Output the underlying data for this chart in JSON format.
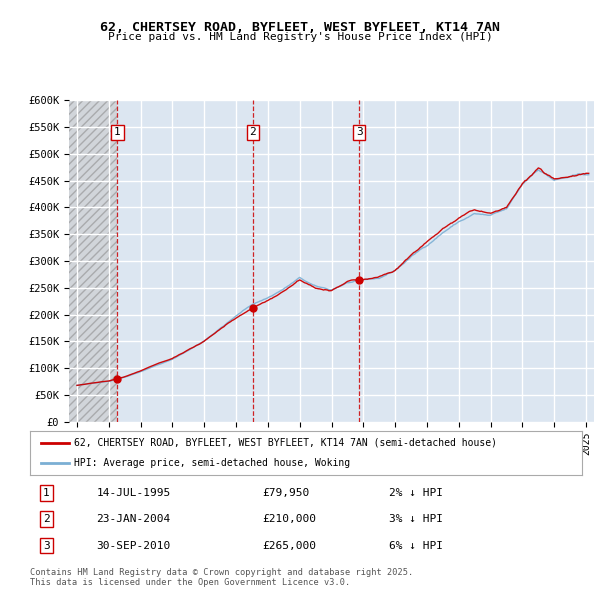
{
  "title": "62, CHERTSEY ROAD, BYFLEET, WEST BYFLEET, KT14 7AN",
  "subtitle": "Price paid vs. HM Land Registry's House Price Index (HPI)",
  "ylim": [
    0,
    600000
  ],
  "yticks": [
    0,
    50000,
    100000,
    150000,
    200000,
    250000,
    300000,
    350000,
    400000,
    450000,
    500000,
    550000,
    600000
  ],
  "ytick_labels": [
    "£0",
    "£50K",
    "£100K",
    "£150K",
    "£200K",
    "£250K",
    "£300K",
    "£350K",
    "£400K",
    "£450K",
    "£500K",
    "£550K",
    "£600K"
  ],
  "plot_bg_color": "#dce6f1",
  "grid_color": "#ffffff",
  "sale_color": "#cc0000",
  "hpi_color": "#7bafd4",
  "sale_dates": [
    1995.54,
    2004.06,
    2010.75
  ],
  "sale_prices": [
    79950,
    210000,
    265000
  ],
  "sale_labels": [
    "1",
    "2",
    "3"
  ],
  "vline_color": "#cc0000",
  "legend_sale_label": "62, CHERTSEY ROAD, BYFLEET, WEST BYFLEET, KT14 7AN (semi-detached house)",
  "legend_hpi_label": "HPI: Average price, semi-detached house, Woking",
  "transaction_rows": [
    {
      "num": "1",
      "date": "14-JUL-1995",
      "price": "£79,950",
      "pct": "2% ↓ HPI"
    },
    {
      "num": "2",
      "date": "23-JAN-2004",
      "price": "£210,000",
      "pct": "3% ↓ HPI"
    },
    {
      "num": "3",
      "date": "30-SEP-2010",
      "price": "£265,000",
      "pct": "6% ↓ HPI"
    }
  ],
  "footnote": "Contains HM Land Registry data © Crown copyright and database right 2025.\nThis data is licensed under the Open Government Licence v3.0.",
  "hpi_base_yearly": {
    "1993.0": 68000,
    "1994.0": 72000,
    "1995.0": 76000,
    "1996.0": 84000,
    "1997.0": 95000,
    "1998.0": 107000,
    "1999.0": 118000,
    "2000.0": 135000,
    "2001.0": 153000,
    "2002.0": 177000,
    "2003.0": 200000,
    "2004.0": 222000,
    "2005.0": 235000,
    "2006.0": 252000,
    "2007.0": 272000,
    "2008.0": 255000,
    "2009.0": 248000,
    "2010.0": 262000,
    "2011.0": 265000,
    "2012.0": 268000,
    "2013.0": 283000,
    "2014.0": 308000,
    "2015.0": 330000,
    "2016.0": 355000,
    "2017.0": 375000,
    "2018.0": 390000,
    "2019.0": 385000,
    "2020.0": 395000,
    "2021.0": 440000,
    "2022.0": 470000,
    "2023.0": 450000,
    "2024.0": 455000,
    "2025.0": 458000
  },
  "sale_hpi_at_date": [
    81600,
    216500,
    281200
  ],
  "xlim_left": 1992.5,
  "xlim_right": 2025.5,
  "xtick_years": [
    1993,
    1995,
    1997,
    1999,
    2001,
    2003,
    2005,
    2007,
    2009,
    2011,
    2013,
    2015,
    2017,
    2019,
    2021,
    2023,
    2025
  ],
  "hatch_end": 1995.54,
  "noise_seed": 42,
  "noise_scale_hpi": 0.018,
  "noise_scale_price": 0.022
}
